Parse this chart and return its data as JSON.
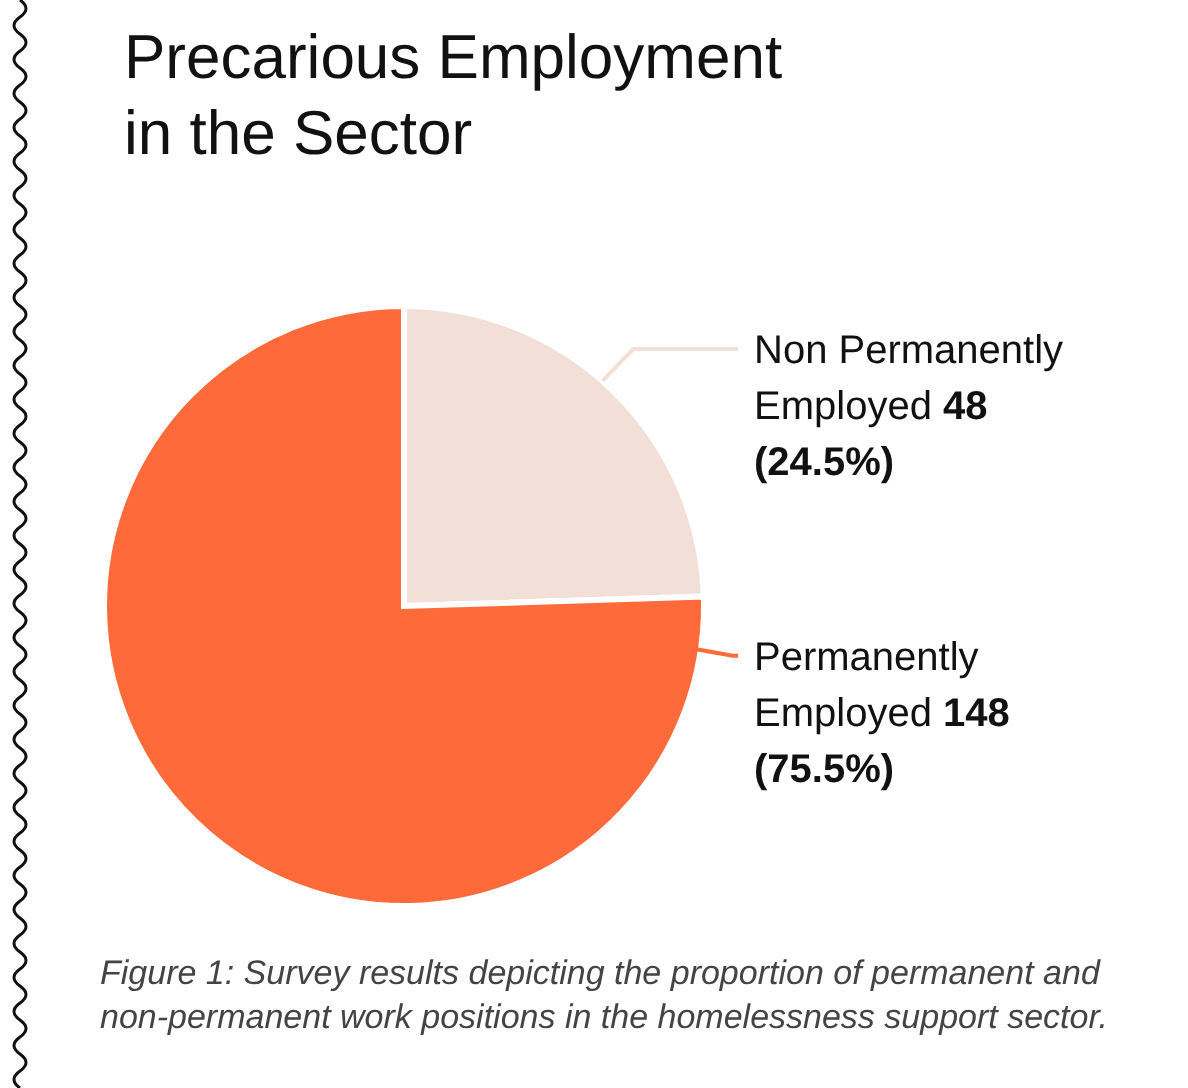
{
  "chart_data": {
    "type": "pie",
    "title": "Precarious Employment in the Sector",
    "categories": [
      "Non Permanently Employed",
      "Permanently Employed"
    ],
    "values": [
      24.5,
      75.5
    ],
    "colors": [
      "#f2dfd8",
      "#ff6a3a"
    ],
    "value_labels": [
      "48 (24.5%)",
      "148 (75.5%)"
    ],
    "annotations": [
      "Figure 1: Survey results depicting the proportion of permanent and non-permanent work positions in the homelessness support sector."
    ]
  }
}
